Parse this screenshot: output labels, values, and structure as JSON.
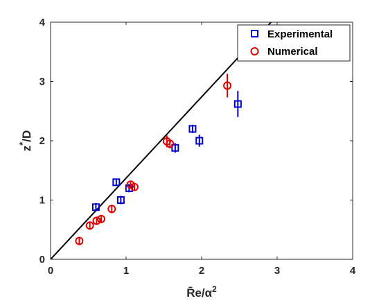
{
  "chart_data": {
    "type": "scatter",
    "xlabel_main": "R̄e/α",
    "xlabel_sup": "2",
    "ylabel_main": "z",
    "ylabel_sup": "*",
    "ylabel_tail": "/D",
    "xlim": [
      0,
      4
    ],
    "ylim": [
      0,
      4
    ],
    "xticks": [
      "0",
      "1",
      "2",
      "3",
      "4"
    ],
    "yticks": [
      "0",
      "1",
      "2",
      "3",
      "4"
    ],
    "legend_position": "top-right",
    "fit_line": {
      "slope": 1.37,
      "intercept": 0,
      "color": "#000000"
    },
    "series": [
      {
        "name": "Experimental",
        "marker": "square",
        "color": "#0000cc",
        "points": [
          {
            "x": 0.6,
            "y": 0.88,
            "err": 0.07
          },
          {
            "x": 0.87,
            "y": 1.3,
            "err": 0.05
          },
          {
            "x": 0.93,
            "y": 1.0,
            "err": 0.07
          },
          {
            "x": 1.04,
            "y": 1.2,
            "err": 0.07
          },
          {
            "x": 1.65,
            "y": 1.88,
            "err": 0.08
          },
          {
            "x": 1.88,
            "y": 2.2,
            "err": 0.07
          },
          {
            "x": 1.97,
            "y": 2.0,
            "err": 0.1
          },
          {
            "x": 2.48,
            "y": 2.62,
            "err": 0.22
          }
        ]
      },
      {
        "name": "Numerical",
        "marker": "circle",
        "color": "#e00000",
        "points": [
          {
            "x": 0.38,
            "y": 0.31,
            "err": 0.05
          },
          {
            "x": 0.52,
            "y": 0.57,
            "err": 0.05
          },
          {
            "x": 0.61,
            "y": 0.65,
            "err": 0.05
          },
          {
            "x": 0.67,
            "y": 0.68,
            "err": 0.05
          },
          {
            "x": 0.81,
            "y": 0.85,
            "err": 0.05
          },
          {
            "x": 1.06,
            "y": 1.26,
            "err": 0.06
          },
          {
            "x": 1.11,
            "y": 1.22,
            "err": 0.05
          },
          {
            "x": 1.54,
            "y": 1.99,
            "err": 0.1
          },
          {
            "x": 1.58,
            "y": 1.95,
            "err": 0.08
          },
          {
            "x": 2.34,
            "y": 2.93,
            "err": 0.2
          }
        ]
      }
    ]
  }
}
